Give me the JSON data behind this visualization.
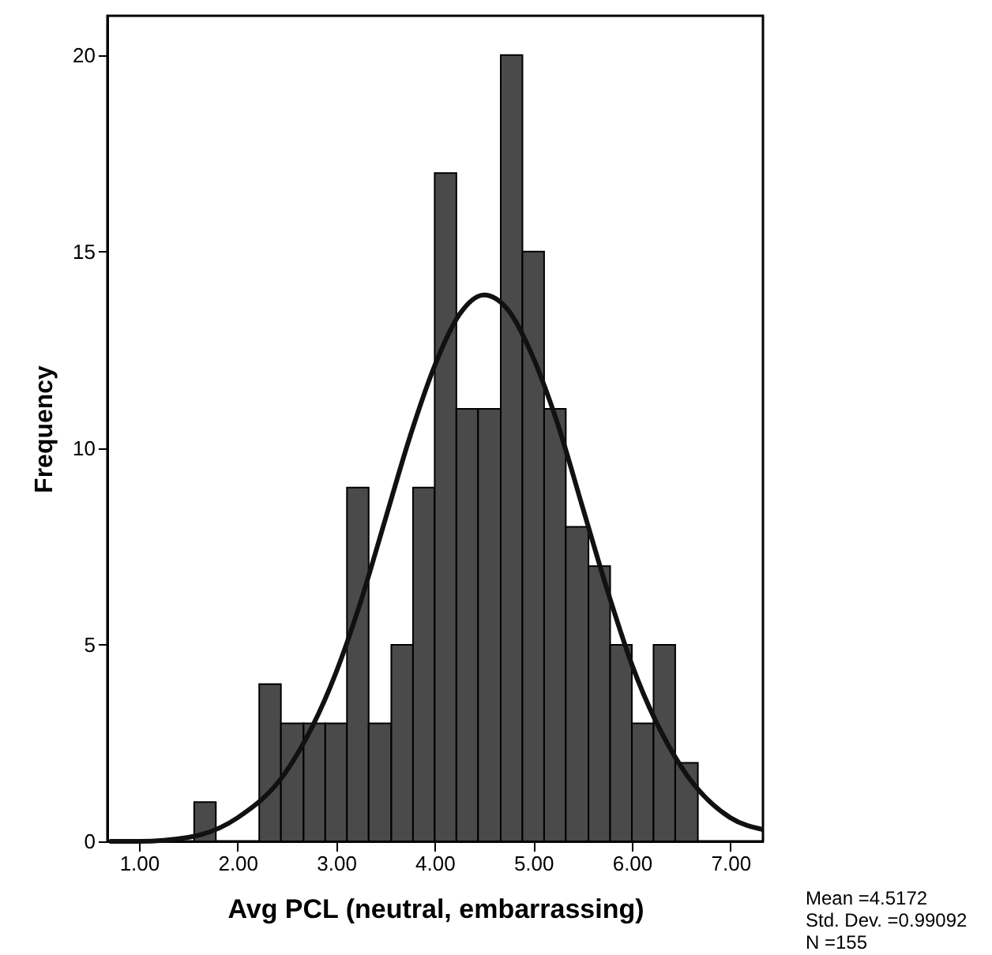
{
  "chart_data": {
    "type": "histogram",
    "xlabel": "Avg PCL (neutral, embarrassing)",
    "ylabel": "Frequency",
    "bins": [
      1.56,
      1.78,
      2.22,
      2.44,
      2.67,
      2.89,
      3.11,
      3.33,
      3.56,
      3.78,
      4.0,
      4.22,
      4.44,
      4.67,
      4.89,
      5.11,
      5.33,
      5.56,
      5.78,
      6.0,
      6.22,
      6.44,
      6.67
    ],
    "series": [
      {
        "color": "#4a4a4a",
        "values": [
          1,
          0,
          4,
          3,
          3,
          3,
          9,
          3,
          5,
          9,
          17,
          11,
          11,
          20,
          15,
          11,
          8,
          7,
          5,
          3,
          5,
          2
        ]
      },
      {
        "type": "line",
        "color": "#111111",
        "x": [
          0.7,
          1.0,
          1.5,
          2.0,
          2.5,
          3.0,
          3.25,
          3.5,
          3.75,
          4.0,
          4.25,
          4.5,
          4.75,
          5.0,
          5.25,
          5.5,
          5.75,
          6.0,
          6.5,
          7.0,
          7.33
        ],
        "values": [
          0.0,
          0.0,
          0.1,
          0.6,
          1.8,
          4.3,
          6.1,
          8.2,
          10.3,
          12.1,
          13.4,
          13.9,
          13.5,
          12.3,
          10.6,
          8.5,
          6.4,
          4.5,
          1.9,
          0.6,
          0.3
        ]
      }
    ],
    "xlim": [
      0.68,
      7.33
    ],
    "xticks": [
      {
        "value": 1,
        "label": "1.00"
      },
      {
        "value": 2,
        "label": "2.00"
      },
      {
        "value": 3,
        "label": "3.00"
      },
      {
        "value": 4,
        "label": "4.00"
      },
      {
        "value": 5,
        "label": "5.00"
      },
      {
        "value": 6,
        "label": "6.00"
      },
      {
        "value": 7,
        "label": "7.00"
      }
    ],
    "ylim": [
      0,
      21
    ],
    "yticks": [
      0,
      5,
      10,
      15,
      20
    ],
    "annotations": [
      "Mean =4.5172",
      "Std. Dev. =0.99092",
      "N =155"
    ]
  }
}
